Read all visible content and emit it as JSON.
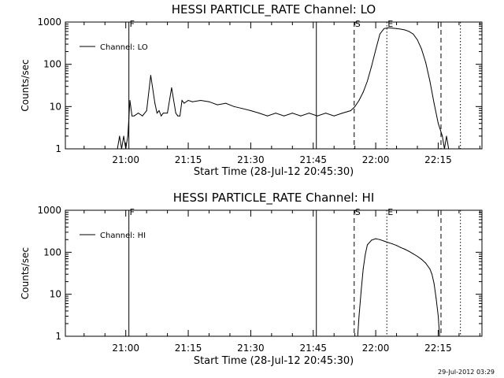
{
  "chart_data": [
    {
      "type": "line",
      "title": "HESSI PARTICLE_RATE Channel: LO",
      "xlabel": "Start Time (28-Jul-12 20:45:30)",
      "ylabel": "Counts/sec",
      "yscale": "log",
      "xlim": [
        "20:45:30",
        "22:25:30"
      ],
      "ylim": [
        1,
        1000
      ],
      "xticks": [
        "21:00",
        "21:15",
        "21:30",
        "21:45",
        "22:00",
        "22:15"
      ],
      "yticks": [
        "1",
        "10",
        "100",
        "1000"
      ],
      "grid": false,
      "legend_position": "top-left",
      "series": [
        {
          "name": "Channel: LO",
          "x": [
            "20:58:00",
            "20:58:30",
            "20:59:00",
            "20:59:30",
            "21:00:00",
            "21:00:30",
            "21:01:00",
            "21:01:30",
            "21:02:00",
            "21:03:00",
            "21:04:00",
            "21:05:00",
            "21:06:00",
            "21:07:00",
            "21:07:30",
            "21:08:00",
            "21:08:30",
            "21:09:00",
            "21:10:00",
            "21:11:00",
            "21:12:00",
            "21:12:30",
            "21:13:00",
            "21:13:30",
            "21:14:00",
            "21:15:00",
            "21:16:00",
            "21:18:00",
            "21:20:00",
            "21:22:00",
            "21:24:00",
            "21:26:00",
            "21:28:00",
            "21:30:00",
            "21:32:00",
            "21:34:00",
            "21:36:00",
            "21:38:00",
            "21:40:00",
            "21:42:00",
            "21:44:00",
            "21:46:00",
            "21:48:00",
            "21:50:00",
            "21:52:00",
            "21:54:00",
            "21:55:00",
            "21:56:00",
            "21:57:00",
            "21:58:00",
            "21:59:00",
            "22:00:00",
            "22:01:00",
            "22:02:00",
            "22:03:00",
            "22:04:00",
            "22:05:00",
            "22:06:00",
            "22:07:00",
            "22:08:00",
            "22:09:00",
            "22:10:00",
            "22:11:00",
            "22:12:00",
            "22:13:00",
            "22:14:00",
            "22:15:00",
            "22:16:00",
            "22:16:30",
            "22:17:00",
            "22:17:30",
            "22:18:00"
          ],
          "values": [
            1,
            2,
            1,
            2,
            1,
            2,
            14,
            6,
            6,
            7,
            6,
            8,
            55,
            12,
            7,
            8,
            6,
            7,
            7,
            28,
            7,
            6,
            6,
            14,
            12,
            14,
            13,
            14,
            13,
            11,
            12,
            10,
            9,
            8,
            7,
            6,
            7,
            6,
            7,
            6,
            7,
            6,
            7,
            6,
            7,
            8,
            10,
            14,
            22,
            40,
            90,
            220,
            520,
            700,
            730,
            720,
            700,
            680,
            650,
            600,
            520,
            380,
            230,
            110,
            40,
            12,
            4,
            2,
            1,
            2,
            1,
            1
          ]
        }
      ],
      "annotations": [
        {
          "label": "F",
          "x": "21:00:45",
          "style": "solid"
        },
        {
          "label": "",
          "x": "21:45:45",
          "style": "solid"
        },
        {
          "label": "S",
          "x": "21:54:50",
          "style": "dashed"
        },
        {
          "label": "E",
          "x": "22:02:40",
          "style": "dotted"
        },
        {
          "label": "",
          "x": "22:15:40",
          "style": "dashed"
        },
        {
          "label": "",
          "x": "22:20:20",
          "style": "dotted"
        }
      ]
    },
    {
      "type": "line",
      "title": "HESSI PARTICLE_RATE Channel: HI",
      "xlabel": "Start Time (28-Jul-12 20:45:30)",
      "ylabel": "Counts/sec",
      "yscale": "log",
      "xlim": [
        "20:45:30",
        "22:25:30"
      ],
      "ylim": [
        1,
        1000
      ],
      "xticks": [
        "21:00",
        "21:15",
        "21:30",
        "21:45",
        "22:00",
        "22:15"
      ],
      "yticks": [
        "1",
        "10",
        "100",
        "1000"
      ],
      "grid": false,
      "legend_position": "top-left",
      "series": [
        {
          "name": "Channel: HI",
          "x": [
            "21:55:40",
            "21:56:00",
            "21:56:30",
            "21:57:00",
            "21:57:30",
            "21:58:00",
            "21:59:00",
            "22:00:00",
            "22:01:00",
            "22:02:00",
            "22:03:00",
            "22:04:00",
            "22:05:00",
            "22:06:00",
            "22:07:00",
            "22:08:00",
            "22:09:00",
            "22:10:00",
            "22:11:00",
            "22:12:00",
            "22:13:00",
            "22:13:30",
            "22:14:00",
            "22:14:30",
            "22:15:00",
            "22:15:20"
          ],
          "values": [
            1,
            3,
            12,
            40,
            90,
            150,
            195,
            210,
            200,
            185,
            170,
            158,
            145,
            130,
            118,
            105,
            92,
            80,
            68,
            55,
            40,
            30,
            18,
            8,
            3,
            1
          ]
        }
      ],
      "annotations": [
        {
          "label": "F",
          "x": "21:00:45",
          "style": "solid"
        },
        {
          "label": "",
          "x": "21:45:45",
          "style": "solid"
        },
        {
          "label": "S",
          "x": "21:54:50",
          "style": "dashed"
        },
        {
          "label": "E",
          "x": "22:02:40",
          "style": "dotted"
        },
        {
          "label": "",
          "x": "22:15:40",
          "style": "dashed"
        },
        {
          "label": "",
          "x": "22:20:20",
          "style": "dotted"
        }
      ]
    }
  ],
  "footer": {
    "timestamp": "29-Jul-2012 03:29"
  }
}
